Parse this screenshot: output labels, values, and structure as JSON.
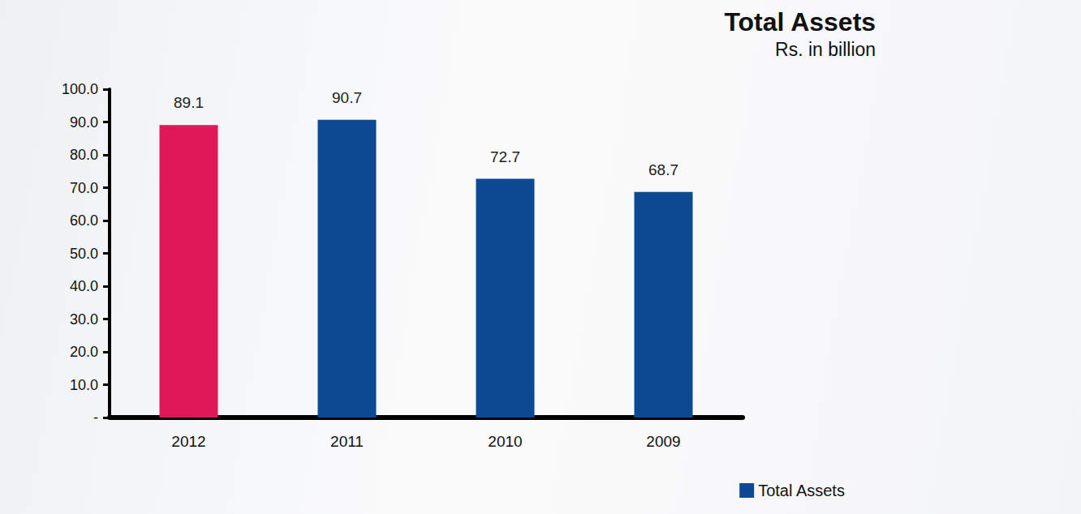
{
  "chart_data": {
    "type": "bar",
    "title": "Total Assets",
    "subtitle": "Rs. in billion",
    "categories": [
      "2012",
      "2011",
      "2010",
      "2009"
    ],
    "series": [
      {
        "name": "Total Assets",
        "color": "#0e4a94",
        "values": [
          89.1,
          90.7,
          72.7,
          68.7
        ],
        "colors": [
          "#e0185a",
          "#0e4a94",
          "#0e4a94",
          "#0e4a94"
        ]
      }
    ],
    "ylim": [
      0,
      100
    ],
    "yticks": [
      {
        "value": 0,
        "label": "-"
      },
      {
        "value": 10,
        "label": "10.0"
      },
      {
        "value": 20,
        "label": "20.0"
      },
      {
        "value": 30,
        "label": "30.0"
      },
      {
        "value": 40,
        "label": "40.0"
      },
      {
        "value": 50,
        "label": "50.0"
      },
      {
        "value": 60,
        "label": "60.0"
      },
      {
        "value": 70,
        "label": "70.0"
      },
      {
        "value": 80,
        "label": "80.0"
      },
      {
        "value": 90,
        "label": "90.0"
      },
      {
        "value": 100,
        "label": "100.0"
      }
    ],
    "grid": false,
    "data_labels": true,
    "legend": "lower right"
  }
}
